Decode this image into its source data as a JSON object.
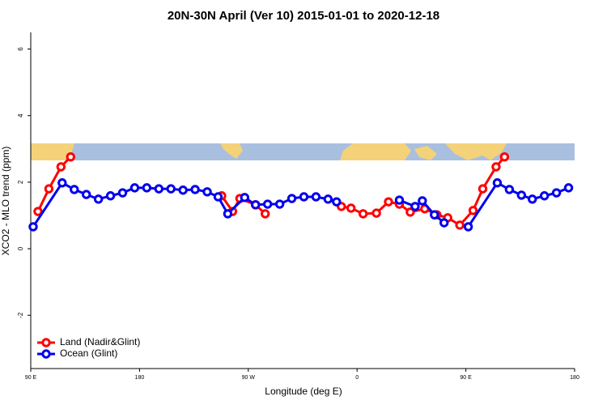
{
  "chart_data": {
    "type": "line",
    "title": "20N-30N April (Ver 10)   2015-01-01 to 2020-12-18",
    "xlabel": "Longitude (deg E)",
    "ylabel": "XCO2 - MLO trend (ppm)",
    "xlim": [
      90,
      540
    ],
    "xticks": [
      {
        "value": 90,
        "label": "90 E"
      },
      180,
      {
        "value": 270,
        "label": "90 W"
      },
      {
        "value": 360,
        "label": "0"
      },
      {
        "value": 450,
        "label": "90 E"
      },
      {
        "value": 540,
        "label": "180"
      }
    ],
    "ylim": [
      -3.6,
      6.5
    ],
    "yticks": [
      -2,
      0,
      2,
      4,
      6
    ],
    "legend": "bottom-left",
    "series": [
      {
        "name": "Land (Nadir&Glint)",
        "color": "#ff0000",
        "x": [
          96,
          105,
          115,
          123,
          null,
          248,
          257,
          263,
          276,
          284,
          null,
          347,
          355,
          365,
          376,
          386,
          395,
          404,
          416,
          426,
          435,
          445,
          456,
          464,
          475,
          482
        ],
        "values": [
          1.12,
          1.8,
          2.46,
          2.76,
          null,
          1.59,
          1.12,
          1.51,
          1.32,
          1.05,
          null,
          1.27,
          1.22,
          1.05,
          1.07,
          1.41,
          1.34,
          1.1,
          1.2,
          1.02,
          0.93,
          0.71,
          1.15,
          1.8,
          2.46,
          2.76
        ]
      },
      {
        "name": "Ocean (Glint)",
        "color": "#0000ee",
        "x": [
          92,
          116,
          126,
          136,
          146,
          156,
          166,
          176,
          186,
          196,
          206,
          216,
          226,
          236,
          245,
          253,
          267,
          276,
          286,
          296,
          306,
          316,
          326,
          336,
          343,
          null,
          395,
          408,
          414,
          424,
          432,
          null,
          452,
          476,
          486,
          496,
          505,
          515,
          525,
          535
        ],
        "values": [
          0.66,
          1.98,
          1.78,
          1.63,
          1.49,
          1.59,
          1.68,
          1.83,
          1.83,
          1.8,
          1.8,
          1.76,
          1.78,
          1.71,
          1.56,
          1.05,
          1.54,
          1.32,
          1.34,
          1.34,
          1.51,
          1.56,
          1.56,
          1.49,
          1.41,
          null,
          1.46,
          1.27,
          1.44,
          1.02,
          0.78,
          null,
          0.66,
          1.98,
          1.78,
          1.61,
          1.49,
          1.59,
          1.68,
          1.83
        ]
      }
    ]
  }
}
